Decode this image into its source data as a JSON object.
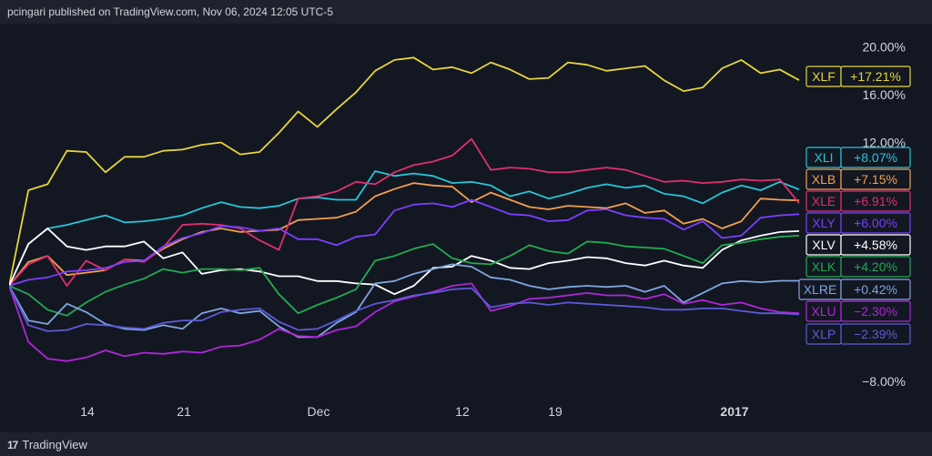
{
  "header": {
    "publish_text": "pcingari published on TradingView.com, Nov 06, 2024 12:05 UTC-5"
  },
  "footer": {
    "brand": "TradingView",
    "logo_mark": "17"
  },
  "chart_data": {
    "type": "line",
    "y_ticks": [
      "20.00%",
      "16.00%",
      "12.00%",
      "−8.00%"
    ],
    "x_ticks": [
      {
        "label": "14",
        "bold": false
      },
      {
        "label": "21",
        "bold": false
      },
      {
        "label": "Dec",
        "bold": false
      },
      {
        "label": "12",
        "bold": false
      },
      {
        "label": "19",
        "bold": false
      },
      {
        "label": "2017",
        "bold": true
      }
    ],
    "ylim": [
      -10,
      22
    ],
    "grid": false,
    "series": [
      {
        "name": "XLF",
        "label": "+17.21%",
        "last": 17.21,
        "color": "#e6d53c",
        "values": [
          0,
          8,
          8.5,
          11.3,
          11.2,
          9.5,
          10.8,
          10.8,
          11.3,
          11.4,
          11.8,
          12,
          11,
          11.2,
          12.8,
          14.6,
          13.3,
          14.8,
          16.2,
          18,
          18.9,
          19.1,
          18.1,
          18.3,
          17.8,
          18.7,
          18.1,
          17.3,
          17.4,
          18.7,
          18.5,
          18,
          18.2,
          18.4,
          17.2,
          16.3,
          16.6,
          18.2,
          18.9,
          17.8,
          18.1,
          17.21
        ]
      },
      {
        "name": "XLI",
        "label": "+8.07%",
        "last": 8.07,
        "color": "#26c6da",
        "values": [
          0,
          3.5,
          4.8,
          5.1,
          5.5,
          5.9,
          5.3,
          5.4,
          5.6,
          5.9,
          6.5,
          7,
          6.6,
          6.5,
          6.7,
          7.3,
          7.4,
          7.2,
          7.2,
          9.6,
          9.2,
          9.4,
          9.2,
          8.6,
          8.7,
          8.4,
          7.5,
          7.9,
          7.3,
          7.7,
          8.2,
          8.5,
          8.2,
          8.4,
          7.7,
          7.5,
          6.9,
          7.8,
          8.4,
          8,
          8.7,
          8.07
        ]
      },
      {
        "name": "XLB",
        "label": "+7.15%",
        "last": 7.15,
        "color": "#f0a050",
        "values": [
          0,
          2,
          2.5,
          0.9,
          1.1,
          1.3,
          2.2,
          2.1,
          3.1,
          3.9,
          4.5,
          4.8,
          4.5,
          4.6,
          4.7,
          5.5,
          5.6,
          5.7,
          6.2,
          7.5,
          8.1,
          8.6,
          8.4,
          8.3,
          7,
          7.8,
          7.2,
          6.6,
          6.4,
          6.7,
          6.6,
          6.5,
          6.9,
          6.1,
          6.3,
          5.2,
          5.6,
          4.8,
          5.4,
          7.3,
          7.2,
          7.15
        ]
      },
      {
        "name": "XLE",
        "label": "+6.91%",
        "last": 6.91,
        "color": "#e0306f",
        "values": [
          0,
          1.8,
          2.5,
          0,
          2.1,
          1.3,
          2.2,
          2,
          3.2,
          5.1,
          5.2,
          5.1,
          4.8,
          3.8,
          3,
          7.3,
          7.5,
          7.9,
          8.7,
          8.5,
          9.5,
          10.1,
          10.4,
          10.9,
          12.3,
          9.7,
          9.9,
          9.8,
          9.5,
          9.5,
          9.7,
          9.9,
          9.7,
          9.2,
          8.7,
          8.8,
          8.6,
          8.7,
          8.9,
          8.8,
          8.9,
          6.91
        ]
      },
      {
        "name": "XLY",
        "label": "+6.00%",
        "last": 6.0,
        "color": "#7b3fff",
        "values": [
          0,
          0.5,
          0.7,
          1.2,
          1.3,
          1.5,
          2,
          2.1,
          3.3,
          4,
          4.4,
          5,
          4.9,
          4.6,
          4.8,
          3.9,
          3.9,
          3.4,
          4.1,
          4.3,
          6.3,
          6.8,
          6.9,
          6.6,
          7.2,
          6.6,
          6,
          5.9,
          5.4,
          5.5,
          6.3,
          6.4,
          5.9,
          5.7,
          5.6,
          4.7,
          5.4,
          4,
          4.2,
          5.7,
          5.9,
          6.0
        ]
      },
      {
        "name": "XLV",
        "label": "+4.58%",
        "last": 4.58,
        "color": "#ffffff",
        "values": [
          0,
          3.5,
          4.8,
          3.3,
          3,
          3.3,
          3.3,
          3.7,
          2.3,
          2.8,
          1,
          1.3,
          1.4,
          1.2,
          0.8,
          0.8,
          0.4,
          0.4,
          0.2,
          0.1,
          -0.7,
          0,
          1.5,
          1.6,
          2.5,
          2.1,
          1.5,
          1.4,
          1.9,
          2.1,
          2.4,
          2.3,
          1.9,
          1.7,
          2.1,
          1.7,
          1.5,
          3,
          3.8,
          4.2,
          4.5,
          4.58
        ]
      },
      {
        "name": "XLK",
        "label": "+4.20%",
        "last": 4.2,
        "color": "#22ab52",
        "values": [
          0,
          -0.7,
          -2,
          -2.5,
          -1.4,
          -0.5,
          0.1,
          0.6,
          1.4,
          1.1,
          1.4,
          1.4,
          1.3,
          1.5,
          -0.7,
          -2.3,
          -1.6,
          -1,
          -0.3,
          2.1,
          2.5,
          3.1,
          3.5,
          2.3,
          1.9,
          1.8,
          2.5,
          3.4,
          2.9,
          2.7,
          3.7,
          3.6,
          3.3,
          3.2,
          3.1,
          2.5,
          1.9,
          3.4,
          3.6,
          3.9,
          4.1,
          4.2
        ]
      },
      {
        "name": "XLRE",
        "label": "+0.42%",
        "last": 0.42,
        "color": "#7fa6e0",
        "values": [
          0,
          -2.9,
          -3.2,
          -1.5,
          -2.2,
          -3.2,
          -3.6,
          -3.7,
          -3.3,
          -3.6,
          -2.3,
          -1.9,
          -2.3,
          -2.1,
          -3.4,
          -4.3,
          -4.3,
          -3.1,
          -2.2,
          0.2,
          0.4,
          1,
          1.4,
          1.8,
          1.6,
          0.7,
          0.5,
          0,
          -0.3,
          -0.1,
          0,
          -0.1,
          0,
          -0.5,
          0,
          -1.4,
          -0.6,
          0.2,
          0.4,
          0.3,
          0.42,
          0.42
        ]
      },
      {
        "name": "XLU",
        "label": "−2.30%",
        "last": -2.3,
        "color": "#b026d9",
        "values": [
          0,
          -4.7,
          -6.1,
          -6.3,
          -6,
          -5.4,
          -5.9,
          -5.6,
          -5.7,
          -5.5,
          -5.6,
          -5.1,
          -5,
          -4.5,
          -3.6,
          -4.2,
          -4.3,
          -3.7,
          -3.4,
          -2.2,
          -1.3,
          -0.9,
          -0.5,
          0,
          0.2,
          -2.1,
          -1.7,
          -1.1,
          -1,
          -0.8,
          -0.6,
          -0.8,
          -0.8,
          -1.1,
          -0.7,
          -1.5,
          -1.2,
          -1.6,
          -1.4,
          -1.9,
          -2.2,
          -2.3
        ]
      },
      {
        "name": "XLP",
        "label": "−2.39%",
        "last": -2.39,
        "color": "#5b5bd6",
        "values": [
          0,
          -3.3,
          -3.8,
          -3.7,
          -3.2,
          -3.3,
          -3.5,
          -3.6,
          -3.1,
          -2.9,
          -2.9,
          -2.2,
          -2,
          -1.9,
          -3,
          -3.7,
          -3.6,
          -2.9,
          -2.1,
          -1.5,
          -1.2,
          -0.8,
          -0.6,
          -0.3,
          -0.2,
          -1.8,
          -1.5,
          -1.4,
          -1.6,
          -1.4,
          -1.5,
          -1.6,
          -1.7,
          -1.8,
          -2,
          -2,
          -1.9,
          -1.9,
          -2.1,
          -2.3,
          -2.3,
          -2.39
        ]
      }
    ]
  }
}
